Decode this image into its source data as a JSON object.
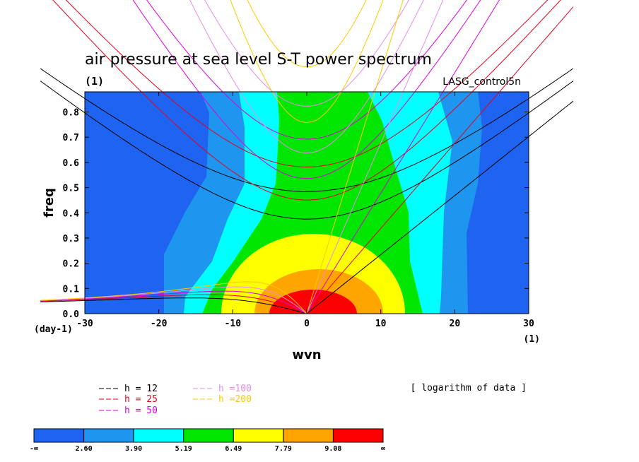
{
  "chart_data": {
    "type": "heatmap",
    "title": "air pressure at sea level S-T power spectrum",
    "units_label": "(1)",
    "dataset_label": "LASG_control5n",
    "xlabel": "wvn",
    "ylabel": "freq",
    "x_unit_label": "(1)",
    "y_unit_label": "(day-1)",
    "xlim": [
      -30,
      30
    ],
    "ylim": [
      0,
      0.88
    ],
    "x_ticks": [
      "-30",
      "-20",
      "-10",
      "0",
      "10",
      "20",
      "30"
    ],
    "y_ticks": [
      "0.0",
      "0.1",
      "0.2",
      "0.3",
      "0.4",
      "0.5",
      "0.6",
      "0.7",
      "0.8"
    ],
    "note": "[ logarithm of data ]",
    "colorbar": {
      "labels": [
        "-∞",
        "2.60",
        "3.90",
        "5.19",
        "6.49",
        "7.79",
        "9.08",
        "∞"
      ],
      "colors": [
        "#1e64f0",
        "#1e96f0",
        "#00ffff",
        "#00e600",
        "#ffff00",
        "#ffa500",
        "#ff0000"
      ]
    },
    "dispersion_legend": [
      {
        "label": "h = 12",
        "color": "#000000"
      },
      {
        "label": "h = 25",
        "color": "#e6001e"
      },
      {
        "label": "h = 50",
        "color": "#dc00dc"
      },
      {
        "label": "h =100",
        "color": "#e68ce6"
      },
      {
        "label": "h =200",
        "color": "#ffc800"
      }
    ],
    "dispersion_h": [
      12,
      25,
      50,
      100,
      200
    ],
    "field_points": [
      {
        "x": 0,
        "y": 0.03,
        "v": 10.5
      },
      {
        "x": 0,
        "y": 0.2,
        "v": 7.8
      },
      {
        "x": 0,
        "y": 0.5,
        "v": 6.0
      },
      {
        "x": -27,
        "y": 0.45,
        "v": 2.4
      },
      {
        "x": 27,
        "y": 0.25,
        "v": 2.4
      }
    ]
  }
}
